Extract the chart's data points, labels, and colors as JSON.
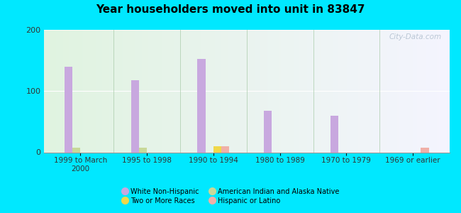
{
  "title": "Year householders moved into unit in 83847",
  "categories": [
    "1999 to March\n2000",
    "1995 to 1998",
    "1990 to 1994",
    "1980 to 1989",
    "1970 to 1979",
    "1969 or earlier"
  ],
  "series": {
    "White Non-Hispanic": [
      140,
      118,
      152,
      68,
      60,
      0
    ],
    "American Indian and Alaska Native": [
      7,
      8,
      0,
      0,
      0,
      0
    ],
    "Two or More Races": [
      0,
      0,
      10,
      0,
      0,
      0
    ],
    "Hispanic or Latino": [
      0,
      0,
      10,
      0,
      0,
      7
    ]
  },
  "colors": {
    "White Non-Hispanic": "#c8a8df",
    "American Indian and Alaska Native": "#c8d899",
    "Two or More Races": "#f0d84a",
    "Hispanic or Latino": "#f0b0a8"
  },
  "ylim": [
    0,
    200
  ],
  "yticks": [
    0,
    100,
    200
  ],
  "bar_width": 0.12,
  "background_outer": "#00e8ff",
  "watermark": "City-Data.com",
  "legend_order": [
    "White Non-Hispanic",
    "Two or More Races",
    "American Indian and Alaska Native",
    "Hispanic or Latino"
  ]
}
